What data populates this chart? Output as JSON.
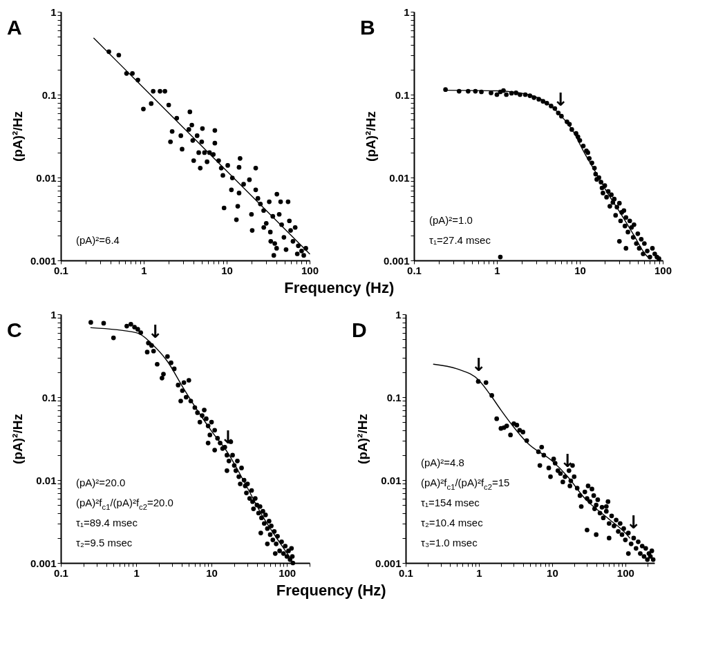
{
  "chart_data": [
    {
      "type": "scatter",
      "title": "A",
      "ylabel": "(pA)²/Hz",
      "xlabel": "Frequency (Hz)",
      "log": "xy",
      "xlim": [
        0.1,
        100
      ],
      "ylim": [
        0.001,
        1
      ],
      "xticks": [
        0.1,
        {
          "value": 0.2,
          "label": null
        },
        {
          "value": 0.3,
          "label": null
        },
        {
          "value": 0.4,
          "label": null
        },
        {
          "value": 0.5,
          "label": null
        },
        {
          "value": 0.6,
          "label": null
        },
        {
          "value": 0.7,
          "label": null
        },
        {
          "value": 0.8,
          "label": null
        },
        {
          "value": 0.9,
          "label": null
        },
        1,
        {
          "value": 2,
          "label": null
        },
        {
          "value": 3,
          "label": null
        },
        {
          "value": 4,
          "label": null
        },
        {
          "value": 5,
          "label": null
        },
        {
          "value": 6,
          "label": null
        },
        {
          "value": 7,
          "label": null
        },
        {
          "value": 8,
          "label": null
        },
        {
          "value": 9,
          "label": null
        },
        10,
        {
          "value": 20,
          "label": null
        },
        {
          "value": 30,
          "label": null
        },
        {
          "value": 40,
          "label": null
        },
        {
          "value": 50,
          "label": null
        },
        {
          "value": 60,
          "label": null
        },
        {
          "value": 70,
          "label": null
        },
        {
          "value": 80,
          "label": null
        },
        {
          "value": 90,
          "label": null
        },
        100
      ],
      "yticks": [
        0.001,
        {
          "value": 0.002,
          "label": null
        },
        {
          "value": 0.003,
          "label": null
        },
        {
          "value": 0.004,
          "label": null
        },
        {
          "value": 0.005,
          "label": null
        },
        {
          "value": 0.006,
          "label": null
        },
        {
          "value": 0.007,
          "label": null
        },
        {
          "value": 0.008,
          "label": null
        },
        {
          "value": 0.009,
          "label": null
        },
        0.01,
        {
          "value": 0.02,
          "label": null
        },
        {
          "value": 0.03,
          "label": null
        },
        {
          "value": 0.04,
          "label": null
        },
        {
          "value": 0.05,
          "label": null
        },
        {
          "value": 0.06,
          "label": null
        },
        {
          "value": 0.07,
          "label": null
        },
        {
          "value": 0.08,
          "label": null
        },
        {
          "value": 0.09,
          "label": null
        },
        0.1,
        {
          "value": 0.2,
          "label": null
        },
        {
          "value": 0.3,
          "label": null
        },
        {
          "value": 0.4,
          "label": null
        },
        {
          "value": 0.5,
          "label": null
        },
        {
          "value": 0.6,
          "label": null
        },
        {
          "value": 0.7,
          "label": null
        },
        {
          "value": 0.8,
          "label": null
        },
        {
          "value": 0.9,
          "label": null
        },
        1
      ],
      "annotations": [
        "(pA)²=6.4"
      ],
      "series": [
        {
          "color": "#000000",
          "marker": "circle",
          "x": [
            0.38,
            0.5,
            0.62,
            0.73,
            0.85,
            0.99,
            1.23,
            1.3,
            1.57,
            1.8,
            2.0,
            2.5,
            2.2,
            2.1,
            2.8,
            2.9,
            3.6,
            3.8,
            3.5,
            3.9,
            4.4,
            4.6,
            4.8,
            5.1,
            5.0,
            4.0,
            5.4,
            5.8,
            6.2,
            6.9,
            7.2,
            7.2,
            8.0,
            8.6,
            9.0,
            9.3,
            10.3,
            11.4,
            11.7,
            13.1,
            14.1,
            14.5,
            14.1,
            13.6,
            16.0,
            18.8,
            19.9,
            20.3,
            22.4,
            22.4,
            23.8,
            25.5,
            27.9,
            30,
            32.6,
            33.6,
            36,
            38,
            40.3,
            43,
            44.7,
            46,
            49,
            52,
            55,
            57,
            59,
            63,
            67,
            71,
            73,
            80,
            85,
            90,
            40,
            37,
            28,
            34
          ],
          "values": [
            0.33,
            0.3,
            0.18,
            0.18,
            0.15,
            0.067,
            0.078,
            0.11,
            0.11,
            0.11,
            0.075,
            0.052,
            0.036,
            0.027,
            0.032,
            0.022,
            0.062,
            0.043,
            0.038,
            0.028,
            0.032,
            0.02,
            0.013,
            0.039,
            0.027,
            0.016,
            0.02,
            0.0155,
            0.02,
            0.019,
            0.037,
            0.026,
            0.016,
            0.013,
            0.0106,
            0.0043,
            0.014,
            0.0071,
            0.0099,
            0.0031,
            0.0133,
            0.017,
            0.0065,
            0.0045,
            0.0083,
            0.0094,
            0.0036,
            0.0023,
            0.013,
            0.0071,
            0.0056,
            0.0048,
            0.004,
            0.0028,
            0.0051,
            0.0022,
            0.0034,
            0.0016,
            0.0063,
            0.0036,
            0.0051,
            0.0027,
            0.0019,
            0.00135,
            0.0051,
            0.003,
            0.0023,
            0.0017,
            0.0025,
            0.0012,
            0.0015,
            0.0013,
            0.00115,
            0.0014,
            0.0014,
            0.00115,
            0.0025,
            0.0017
          ]
        },
        {
          "type": "line",
          "color": "#000000",
          "x": [
            0.25,
            1,
            10,
            100
          ],
          "values": [
            0.48,
            0.12,
            0.012,
            0.0012
          ]
        }
      ]
    },
    {
      "type": "scatter",
      "title": "B",
      "ylabel": "(pA)²/Hz",
      "log": "xy",
      "xlim": [
        0.1,
        100
      ],
      "ylim": [
        0.001,
        1
      ],
      "xticks": [
        0.1,
        {
          "value": 0.2,
          "label": null
        },
        {
          "value": 0.3,
          "label": null
        },
        {
          "value": 0.4,
          "label": null
        },
        {
          "value": 0.5,
          "label": null
        },
        {
          "value": 0.6,
          "label": null
        },
        {
          "value": 0.7,
          "label": null
        },
        {
          "value": 0.8,
          "label": null
        },
        {
          "value": 0.9,
          "label": null
        },
        1,
        {
          "value": 2,
          "label": null
        },
        {
          "value": 3,
          "label": null
        },
        {
          "value": 4,
          "label": null
        },
        {
          "value": 5,
          "label": null
        },
        {
          "value": 6,
          "label": null
        },
        {
          "value": 7,
          "label": null
        },
        {
          "value": 8,
          "label": null
        },
        {
          "value": 9,
          "label": null
        },
        10,
        {
          "value": 20,
          "label": null
        },
        {
          "value": 30,
          "label": null
        },
        {
          "value": 40,
          "label": null
        },
        {
          "value": 50,
          "label": null
        },
        {
          "value": 60,
          "label": null
        },
        {
          "value": 70,
          "label": null
        },
        {
          "value": 80,
          "label": null
        },
        {
          "value": 90,
          "label": null
        },
        100
      ],
      "yticks": [
        0.001,
        {
          "value": 0.002,
          "label": null
        },
        {
          "value": 0.003,
          "label": null
        },
        {
          "value": 0.004,
          "label": null
        },
        {
          "value": 0.005,
          "label": null
        },
        {
          "value": 0.006,
          "label": null
        },
        {
          "value": 0.007,
          "label": null
        },
        {
          "value": 0.008,
          "label": null
        },
        {
          "value": 0.009,
          "label": null
        },
        0.01,
        {
          "value": 0.02,
          "label": null
        },
        {
          "value": 0.03,
          "label": null
        },
        {
          "value": 0.04,
          "label": null
        },
        {
          "value": 0.05,
          "label": null
        },
        {
          "value": 0.06,
          "label": null
        },
        {
          "value": 0.07,
          "label": null
        },
        {
          "value": 0.08,
          "label": null
        },
        {
          "value": 0.09,
          "label": null
        },
        0.1,
        {
          "value": 0.2,
          "label": null
        },
        {
          "value": 0.3,
          "label": null
        },
        {
          "value": 0.4,
          "label": null
        },
        {
          "value": 0.5,
          "label": null
        },
        {
          "value": 0.6,
          "label": null
        },
        {
          "value": 0.7,
          "label": null
        },
        {
          "value": 0.8,
          "label": null
        },
        {
          "value": 0.9,
          "label": null
        },
        1
      ],
      "annotations": [
        "(pA)²=1.0",
        "τ₁=27.4 msec",
        {
          "text": "↓",
          "x": 5.9,
          "y": 0.056
        }
      ],
      "series": [
        {
          "color": "#000000",
          "marker": "circle",
          "x": [
            0.24,
            0.35,
            0.45,
            0.55,
            0.65,
            0.85,
            1.0,
            1.1,
            1.2,
            1.3,
            1.5,
            1.7,
            1.9,
            2.2,
            2.5,
            2.8,
            3.2,
            3.6,
            4.0,
            4.5,
            5.0,
            5.5,
            6.0,
            7,
            7.5,
            8,
            9,
            9.5,
            10,
            11,
            12,
            12.5,
            13,
            14,
            15,
            15.5,
            16,
            17,
            18,
            18.5,
            19,
            20,
            21,
            22,
            23,
            24,
            25,
            26,
            27,
            28,
            30,
            31,
            32,
            34,
            35,
            36,
            38,
            40,
            42,
            44,
            45,
            48,
            50,
            52,
            55,
            58,
            60,
            65,
            70,
            75,
            80,
            85,
            90,
            36,
            30,
            1.1
          ],
          "values": [
            0.115,
            0.11,
            0.11,
            0.11,
            0.108,
            0.105,
            0.1,
            0.108,
            0.112,
            0.1,
            0.104,
            0.105,
            0.1,
            0.1,
            0.097,
            0.092,
            0.088,
            0.083,
            0.079,
            0.073,
            0.068,
            0.06,
            0.055,
            0.047,
            0.044,
            0.038,
            0.034,
            0.031,
            0.028,
            0.024,
            0.021,
            0.02,
            0.017,
            0.015,
            0.013,
            0.011,
            0.0095,
            0.01,
            0.0088,
            0.0075,
            0.0065,
            0.008,
            0.0058,
            0.0068,
            0.0045,
            0.0062,
            0.005,
            0.0055,
            0.0035,
            0.0044,
            0.0049,
            0.003,
            0.0038,
            0.004,
            0.0026,
            0.0033,
            0.0022,
            0.003,
            0.0025,
            0.0019,
            0.0027,
            0.0016,
            0.0021,
            0.0014,
            0.0018,
            0.0012,
            0.0016,
            0.0013,
            0.0011,
            0.0014,
            0.0012,
            0.0011,
            0.00105,
            0.0014,
            0.0017,
            0.0011
          ]
        },
        {
          "type": "line",
          "color": "#000000",
          "x": [
            0.24,
            1,
            2.4,
            3.9,
            5.7,
            8.3,
            11.3,
            15.5,
            21,
            31,
            45,
            61,
            69
          ],
          "values": [
            0.113,
            0.111,
            0.1,
            0.081,
            0.058,
            0.036,
            0.02,
            0.0116,
            0.0068,
            0.0037,
            0.002,
            0.0012,
            0.00105
          ]
        }
      ]
    },
    {
      "type": "scatter",
      "title": "C",
      "ylabel": "(pA)²/Hz",
      "xlabel": "Frequency (Hz)",
      "log": "xy",
      "xlim": [
        0.1,
        200
      ],
      "ylim": [
        0.001,
        1
      ],
      "xticks": [
        0.1,
        {
          "value": 0.2,
          "label": null
        },
        {
          "value": 0.3,
          "label": null
        },
        {
          "value": 0.4,
          "label": null
        },
        {
          "value": 0.5,
          "label": null
        },
        {
          "value": 0.6,
          "label": null
        },
        {
          "value": 0.7,
          "label": null
        },
        {
          "value": 0.8,
          "label": null
        },
        {
          "value": 0.9,
          "label": null
        },
        1,
        {
          "value": 2,
          "label": null
        },
        {
          "value": 3,
          "label": null
        },
        {
          "value": 4,
          "label": null
        },
        {
          "value": 5,
          "label": null
        },
        {
          "value": 6,
          "label": null
        },
        {
          "value": 7,
          "label": null
        },
        {
          "value": 8,
          "label": null
        },
        {
          "value": 9,
          "label": null
        },
        10,
        {
          "value": 20,
          "label": null
        },
        {
          "value": 30,
          "label": null
        },
        {
          "value": 40,
          "label": null
        },
        {
          "value": 50,
          "label": null
        },
        {
          "value": 60,
          "label": null
        },
        {
          "value": 70,
          "label": null
        },
        {
          "value": 80,
          "label": null
        },
        {
          "value": 90,
          "label": null
        },
        100,
        {
          "value": 200,
          "label": null
        }
      ],
      "yticks": [
        0.001,
        {
          "value": 0.002,
          "label": null
        },
        {
          "value": 0.003,
          "label": null
        },
        {
          "value": 0.004,
          "label": null
        },
        {
          "value": 0.005,
          "label": null
        },
        {
          "value": 0.006,
          "label": null
        },
        {
          "value": 0.007,
          "label": null
        },
        {
          "value": 0.008,
          "label": null
        },
        {
          "value": 0.009,
          "label": null
        },
        0.01,
        {
          "value": 0.02,
          "label": null
        },
        {
          "value": 0.03,
          "label": null
        },
        {
          "value": 0.04,
          "label": null
        },
        {
          "value": 0.05,
          "label": null
        },
        {
          "value": 0.06,
          "label": null
        },
        {
          "value": 0.07,
          "label": null
        },
        {
          "value": 0.08,
          "label": null
        },
        {
          "value": 0.09,
          "label": null
        },
        0.1,
        {
          "value": 0.2,
          "label": null
        },
        {
          "value": 0.3,
          "label": null
        },
        {
          "value": 0.4,
          "label": null
        },
        {
          "value": 0.5,
          "label": null
        },
        {
          "value": 0.6,
          "label": null
        },
        {
          "value": 0.7,
          "label": null
        },
        {
          "value": 0.8,
          "label": null
        },
        {
          "value": 0.9,
          "label": null
        },
        1
      ],
      "annotations": [
        "(pA)²=20.0",
        "(pA)²f$_{c1}$/(pA)²f$_{c2}$=20.0",
        "τ₁=89.4 msec",
        "τ₂=9.5 msec",
        {
          "text": "↓",
          "x": 1.8,
          "y": 0.4
        },
        {
          "text": "↓",
          "x": 16.6,
          "y": 0.021
        }
      ],
      "series": [
        {
          "color": "#000000",
          "marker": "circle",
          "x": [
            0.25,
            0.37,
            0.5,
            0.75,
            0.85,
            0.95,
            1.05,
            1.15,
            1.45,
            1.6,
            1.4,
            1.7,
            1.9,
            2.2,
            2.3,
            2.6,
            2.9,
            3.2,
            3.6,
            4.1,
            4.3,
            3.9,
            4.6,
            5.0,
            5.3,
            6,
            6.5,
            7,
            7.5,
            8,
            8.5,
            9,
            9.5,
            10,
            11,
            12,
            13,
            14,
            15,
            16,
            17,
            18,
            19,
            20,
            21,
            22,
            23,
            24,
            25,
            27,
            28,
            29,
            30,
            32,
            34,
            35,
            36,
            38,
            40,
            42,
            44,
            46,
            48,
            50,
            52,
            55,
            58,
            60,
            62,
            65,
            68,
            72,
            75,
            80,
            85,
            90,
            95,
            100,
            105,
            110,
            115,
            118,
            120,
            45,
            55,
            70,
            16,
            9,
            11
          ],
          "values": [
            0.8,
            0.78,
            0.52,
            0.72,
            0.76,
            0.7,
            0.66,
            0.6,
            0.45,
            0.42,
            0.35,
            0.36,
            0.25,
            0.17,
            0.19,
            0.31,
            0.26,
            0.22,
            0.14,
            0.12,
            0.15,
            0.09,
            0.1,
            0.16,
            0.09,
            0.075,
            0.065,
            0.05,
            0.06,
            0.07,
            0.055,
            0.045,
            0.035,
            0.05,
            0.04,
            0.032,
            0.028,
            0.024,
            0.025,
            0.02,
            0.017,
            0.029,
            0.02,
            0.015,
            0.013,
            0.017,
            0.011,
            0.009,
            0.014,
            0.01,
            0.0085,
            0.007,
            0.009,
            0.006,
            0.0075,
            0.0055,
            0.0045,
            0.006,
            0.005,
            0.004,
            0.0048,
            0.0035,
            0.0042,
            0.003,
            0.0038,
            0.0026,
            0.0032,
            0.0022,
            0.0028,
            0.0019,
            0.0024,
            0.0017,
            0.0021,
            0.0014,
            0.0018,
            0.0013,
            0.0016,
            0.0012,
            0.0014,
            0.0011,
            0.0015,
            0.0012,
            0.001,
            0.0023,
            0.0017,
            0.0013,
            0.013,
            0.028,
            0.023
          ]
        },
        {
          "type": "line",
          "color": "#000000",
          "x": [
            0.25,
            1,
            1.7,
            2.6,
            4.2,
            7.3,
            10,
            16.6,
            28.6,
            49,
            79,
            115
          ],
          "values": [
            0.69,
            0.6,
            0.42,
            0.27,
            0.13,
            0.059,
            0.039,
            0.021,
            0.0087,
            0.0035,
            0.0018,
            0.0011
          ]
        }
      ]
    },
    {
      "type": "scatter",
      "title": "D",
      "ylabel": "(pA)²/Hz",
      "log": "xy",
      "xlim": [
        0.1,
        250
      ],
      "ylim": [
        0.001,
        1
      ],
      "xticks": [
        0.1,
        {
          "value": 0.2,
          "label": null
        },
        {
          "value": 0.3,
          "label": null
        },
        {
          "value": 0.4,
          "label": null
        },
        {
          "value": 0.5,
          "label": null
        },
        {
          "value": 0.6,
          "label": null
        },
        {
          "value": 0.7,
          "label": null
        },
        {
          "value": 0.8,
          "label": null
        },
        {
          "value": 0.9,
          "label": null
        },
        1,
        {
          "value": 2,
          "label": null
        },
        {
          "value": 3,
          "label": null
        },
        {
          "value": 4,
          "label": null
        },
        {
          "value": 5,
          "label": null
        },
        {
          "value": 6,
          "label": null
        },
        {
          "value": 7,
          "label": null
        },
        {
          "value": 8,
          "label": null
        },
        {
          "value": 9,
          "label": null
        },
        10,
        {
          "value": 20,
          "label": null
        },
        {
          "value": 30,
          "label": null
        },
        {
          "value": 40,
          "label": null
        },
        {
          "value": 50,
          "label": null
        },
        {
          "value": 60,
          "label": null
        },
        {
          "value": 70,
          "label": null
        },
        {
          "value": 80,
          "label": null
        },
        {
          "value": 90,
          "label": null
        },
        100,
        {
          "value": 200,
          "label": null
        }
      ],
      "yticks": [
        0.001,
        {
          "value": 0.002,
          "label": null
        },
        {
          "value": 0.003,
          "label": null
        },
        {
          "value": 0.004,
          "label": null
        },
        {
          "value": 0.005,
          "label": null
        },
        {
          "value": 0.006,
          "label": null
        },
        {
          "value": 0.007,
          "label": null
        },
        {
          "value": 0.008,
          "label": null
        },
        {
          "value": 0.009,
          "label": null
        },
        0.01,
        {
          "value": 0.02,
          "label": null
        },
        {
          "value": 0.03,
          "label": null
        },
        {
          "value": 0.04,
          "label": null
        },
        {
          "value": 0.05,
          "label": null
        },
        {
          "value": 0.06,
          "label": null
        },
        {
          "value": 0.07,
          "label": null
        },
        {
          "value": 0.08,
          "label": null
        },
        {
          "value": 0.09,
          "label": null
        },
        0.1,
        {
          "value": 0.2,
          "label": null
        },
        {
          "value": 0.3,
          "label": null
        },
        {
          "value": 0.4,
          "label": null
        },
        {
          "value": 0.5,
          "label": null
        },
        {
          "value": 0.6,
          "label": null
        },
        {
          "value": 0.7,
          "label": null
        },
        {
          "value": 0.8,
          "label": null
        },
        {
          "value": 0.9,
          "label": null
        },
        1
      ],
      "annotations": [
        "(pA)²=4.8",
        "(pA)²f$_{c1}$/(pA)²f$_{c2}$=15",
        "τ₁=154 msec",
        "τ₂=10.4 msec",
        "τ₃=1.0 msec",
        {
          "text": "↓",
          "x": 1.0,
          "y": 0.16
        },
        {
          "text": "↓",
          "x": 16.3,
          "y": 0.011
        },
        {
          "text": "↓",
          "x": 130,
          "y": 0.002
        }
      ],
      "series": [
        {
          "color": "#000000",
          "marker": "circle",
          "x": [
            0.98,
            1.25,
            1.5,
            1.75,
            2.0,
            2.2,
            2.4,
            2.7,
            3,
            3.3,
            3.6,
            4,
            4.5,
            6.5,
            7.2,
            6.8,
            7.7,
            9,
            9.5,
            10.5,
            11,
            12,
            13,
            14,
            15,
            17,
            18,
            17.5,
            19,
            20,
            22,
            24,
            25,
            28,
            30,
            31,
            33,
            35,
            37,
            38,
            40,
            42,
            45,
            48,
            50,
            55,
            58,
            60,
            65,
            70,
            75,
            80,
            85,
            90,
            95,
            100,
            110,
            120,
            130,
            140,
            150,
            160,
            170,
            180,
            190,
            200,
            210,
            220,
            230,
            30,
            40,
            60,
            55,
            110,
            240
          ],
          "values": [
            0.155,
            0.15,
            0.105,
            0.055,
            0.042,
            0.043,
            0.045,
            0.035,
            0.048,
            0.046,
            0.04,
            0.038,
            0.03,
            0.022,
            0.025,
            0.015,
            0.02,
            0.014,
            0.011,
            0.018,
            0.016,
            0.013,
            0.012,
            0.0095,
            0.011,
            0.013,
            0.0098,
            0.0085,
            0.015,
            0.011,
            0.008,
            0.0065,
            0.0048,
            0.0072,
            0.006,
            0.0085,
            0.0055,
            0.0078,
            0.0065,
            0.0045,
            0.005,
            0.0058,
            0.004,
            0.0047,
            0.0035,
            0.0042,
            0.0055,
            0.003,
            0.0037,
            0.0028,
            0.0033,
            0.0024,
            0.003,
            0.0022,
            0.0026,
            0.0019,
            0.0023,
            0.0017,
            0.002,
            0.0015,
            0.0018,
            0.0013,
            0.0016,
            0.0012,
            0.0015,
            0.0011,
            0.0013,
            0.0012,
            0.0014,
            0.0025,
            0.0022,
            0.002,
            0.0048,
            0.0013,
            0.0011
          ]
        },
        {
          "type": "line",
          "color": "#000000",
          "x": [
            0.24,
            0.5,
            1,
            1.4,
            2.0,
            2.85,
            4.6,
            10,
            16.3,
            28,
            57,
            100,
            115
          ],
          "values": [
            0.25,
            0.22,
            0.16,
            0.11,
            0.07,
            0.046,
            0.028,
            0.017,
            0.011,
            0.006,
            0.0035,
            0.0023,
            0.002
          ]
        }
      ]
    }
  ]
}
